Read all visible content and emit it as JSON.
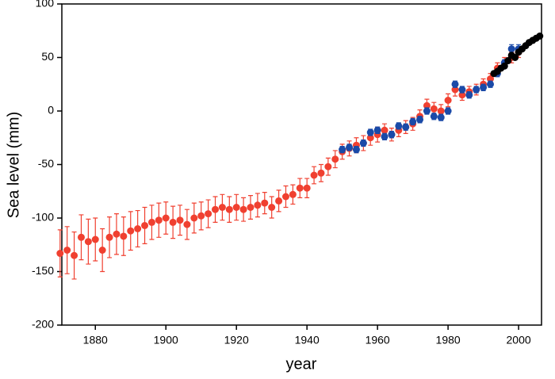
{
  "chart_data": {
    "type": "scatter",
    "x_label": "year",
    "y_label": "Sea level (mm)",
    "xlim": [
      1870.5,
      2006.5
    ],
    "ylim": [
      -200,
      100
    ],
    "xticks": [
      1880,
      1900,
      1920,
      1940,
      1960,
      1980,
      2000
    ],
    "yticks": [
      -200,
      -150,
      -100,
      -50,
      0,
      50,
      100
    ],
    "series": [
      {
        "color": "#f04030",
        "x": [
          1870,
          1872,
          1874,
          1876,
          1878,
          1880,
          1882,
          1884,
          1886,
          1888,
          1890,
          1892,
          1894,
          1896,
          1898,
          1900,
          1902,
          1904,
          1906,
          1908,
          1910,
          1912,
          1914,
          1916,
          1918,
          1920,
          1922,
          1924,
          1926,
          1928,
          1930,
          1932,
          1934,
          1936,
          1938,
          1940,
          1942,
          1944,
          1946,
          1948,
          1950,
          1952,
          1954,
          1956,
          1958,
          1960,
          1962,
          1964,
          1966,
          1968,
          1970,
          1972,
          1974,
          1976,
          1978,
          1980,
          1982,
          1984,
          1986,
          1988,
          1990,
          1992,
          1994,
          1996,
          1998,
          2000
        ],
        "values": [
          -133,
          -130,
          -135,
          -118,
          -122,
          -120,
          -130,
          -118,
          -115,
          -117,
          -112,
          -110,
          -107,
          -104,
          -102,
          -100,
          -104,
          -102,
          -106,
          -100,
          -98,
          -96,
          -92,
          -90,
          -92,
          -90,
          -92,
          -90,
          -88,
          -86,
          -90,
          -84,
          -80,
          -78,
          -72,
          -72,
          -60,
          -58,
          -52,
          -45,
          -38,
          -35,
          -32,
          -30,
          -25,
          -22,
          -18,
          -22,
          -18,
          -15,
          -12,
          -5,
          5,
          2,
          0,
          10,
          20,
          15,
          18,
          20,
          25,
          30,
          40,
          45,
          50,
          55
        ],
        "errors": [
          22,
          22,
          22,
          21,
          21,
          20,
          20,
          19,
          19,
          18,
          18,
          17,
          17,
          16,
          16,
          15,
          15,
          14,
          14,
          14,
          13,
          13,
          12,
          12,
          12,
          12,
          11,
          11,
          11,
          10,
          10,
          10,
          10,
          9,
          9,
          9,
          8,
          8,
          8,
          8,
          7,
          7,
          7,
          7,
          7,
          7,
          6,
          6,
          6,
          6,
          6,
          6,
          6,
          6,
          6,
          6,
          6,
          5,
          5,
          5,
          5,
          5,
          5,
          5,
          5,
          5
        ]
      },
      {
        "color": "#1a4aa8",
        "x": [
          1950,
          1952,
          1954,
          1956,
          1958,
          1960,
          1962,
          1964,
          1966,
          1968,
          1970,
          1972,
          1974,
          1976,
          1978,
          1980,
          1982,
          1984,
          1986,
          1988,
          1990,
          1992,
          1994,
          1996,
          1998,
          2000
        ],
        "values": [
          -36,
          -34,
          -36,
          -30,
          -20,
          -18,
          -24,
          -22,
          -14,
          -15,
          -10,
          -8,
          0,
          -5,
          -6,
          0,
          25,
          20,
          15,
          20,
          22,
          25,
          35,
          45,
          58,
          58
        ],
        "errors": [
          3,
          3,
          3,
          3,
          3,
          3,
          3,
          3,
          3,
          3,
          3,
          3,
          3,
          3,
          3,
          3,
          3,
          3,
          3,
          3,
          3,
          3,
          3,
          3,
          4,
          4
        ]
      },
      {
        "color": "#000000",
        "x": [
          1993,
          1994,
          1995,
          1996,
          1997,
          1998,
          1999,
          2000,
          2001,
          2002,
          2003,
          2004,
          2005,
          2006
        ],
        "values": [
          35,
          37,
          40,
          42,
          47,
          52,
          50,
          55,
          58,
          61,
          64,
          66,
          68,
          70
        ]
      }
    ]
  }
}
